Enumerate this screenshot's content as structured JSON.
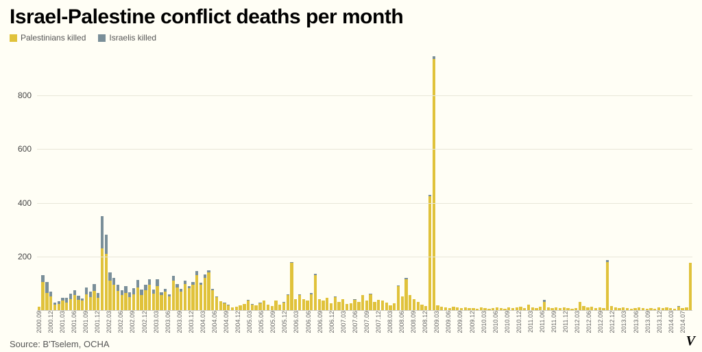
{
  "title": "Israel-Palestine conflict deaths per month",
  "title_fontsize": 30,
  "legend": {
    "series1": {
      "label": "Palestinians killed",
      "color": "#e0c23b"
    },
    "series2": {
      "label": "Israelis killed",
      "color": "#7a8f99"
    }
  },
  "source": "Source: B'Tselem, OCHA",
  "logo": "V",
  "chart": {
    "type": "stacked-bar",
    "background_color": "#fffef5",
    "grid_color": "#e8e6d8",
    "axis_color": "#cccccc",
    "ylim": [
      0,
      950
    ],
    "yticks": [
      200,
      400,
      600,
      800
    ],
    "ytick_fontsize": 12,
    "xlabel_fontsize": 9,
    "xlabel_rotation": -90,
    "bar_gap_ratio": 0.25,
    "xlabels": [
      "2000.09",
      "2000.12",
      "2001.03",
      "2001.06",
      "2001.09",
      "2001.12",
      "2002.03",
      "2002.06",
      "2002.09",
      "2002.12",
      "2003.03",
      "2003.06",
      "2003.09",
      "2003.12",
      "2004.03",
      "2004.06",
      "2004.09",
      "2004.12",
      "2005.03",
      "2005.06",
      "2005.09",
      "2005.12",
      "2006.03",
      "2006.06",
      "2006.09",
      "2006.12",
      "2007.03",
      "2007.06",
      "2007.09",
      "2007.12",
      "2008.03",
      "2008.06",
      "2008.09",
      "2008.12",
      "2009.03",
      "2009.06",
      "2009.09",
      "2009.12",
      "2010.03",
      "2010.06",
      "2010.09",
      "2010.12",
      "2011.03",
      "2011.06",
      "2011.09",
      "2011.12",
      "2012.03",
      "2012.06",
      "2012.09",
      "2012.12",
      "2013.03",
      "2013.06",
      "2013.09",
      "2013.12",
      "2014.03",
      "2014.07"
    ],
    "data": [
      {
        "p": 12,
        "i": 2
      },
      {
        "p": 105,
        "i": 25
      },
      {
        "p": 65,
        "i": 40
      },
      {
        "p": 50,
        "i": 18
      },
      {
        "p": 20,
        "i": 8
      },
      {
        "p": 22,
        "i": 12
      },
      {
        "p": 35,
        "i": 10
      },
      {
        "p": 28,
        "i": 18
      },
      {
        "p": 40,
        "i": 22
      },
      {
        "p": 55,
        "i": 18
      },
      {
        "p": 38,
        "i": 15
      },
      {
        "p": 35,
        "i": 8
      },
      {
        "p": 60,
        "i": 25
      },
      {
        "p": 48,
        "i": 20
      },
      {
        "p": 72,
        "i": 25
      },
      {
        "p": 45,
        "i": 20
      },
      {
        "p": 230,
        "i": 120
      },
      {
        "p": 210,
        "i": 70
      },
      {
        "p": 110,
        "i": 30
      },
      {
        "p": 95,
        "i": 25
      },
      {
        "p": 72,
        "i": 22
      },
      {
        "p": 55,
        "i": 18
      },
      {
        "p": 65,
        "i": 25
      },
      {
        "p": 48,
        "i": 18
      },
      {
        "p": 60,
        "i": 22
      },
      {
        "p": 85,
        "i": 28
      },
      {
        "p": 55,
        "i": 22
      },
      {
        "p": 75,
        "i": 20
      },
      {
        "p": 95,
        "i": 20
      },
      {
        "p": 62,
        "i": 15
      },
      {
        "p": 90,
        "i": 25
      },
      {
        "p": 55,
        "i": 12
      },
      {
        "p": 70,
        "i": 10
      },
      {
        "p": 50,
        "i": 8
      },
      {
        "p": 110,
        "i": 18
      },
      {
        "p": 85,
        "i": 12
      },
      {
        "p": 68,
        "i": 10
      },
      {
        "p": 98,
        "i": 12
      },
      {
        "p": 82,
        "i": 8
      },
      {
        "p": 95,
        "i": 10
      },
      {
        "p": 130,
        "i": 15
      },
      {
        "p": 95,
        "i": 8
      },
      {
        "p": 120,
        "i": 12
      },
      {
        "p": 140,
        "i": 8
      },
      {
        "p": 75,
        "i": 5
      },
      {
        "p": 48,
        "i": 3
      },
      {
        "p": 32,
        "i": 2
      },
      {
        "p": 25,
        "i": 2
      },
      {
        "p": 18,
        "i": 2
      },
      {
        "p": 10,
        "i": 1
      },
      {
        "p": 12,
        "i": 0
      },
      {
        "p": 18,
        "i": 0
      },
      {
        "p": 22,
        "i": 2
      },
      {
        "p": 35,
        "i": 3
      },
      {
        "p": 20,
        "i": 2
      },
      {
        "p": 18,
        "i": 1
      },
      {
        "p": 25,
        "i": 2
      },
      {
        "p": 35,
        "i": 2
      },
      {
        "p": 20,
        "i": 1
      },
      {
        "p": 15,
        "i": 1
      },
      {
        "p": 35,
        "i": 2
      },
      {
        "p": 20,
        "i": 1
      },
      {
        "p": 28,
        "i": 2
      },
      {
        "p": 55,
        "i": 3
      },
      {
        "p": 175,
        "i": 5
      },
      {
        "p": 40,
        "i": 2
      },
      {
        "p": 55,
        "i": 3
      },
      {
        "p": 40,
        "i": 2
      },
      {
        "p": 35,
        "i": 2
      },
      {
        "p": 60,
        "i": 3
      },
      {
        "p": 130,
        "i": 5
      },
      {
        "p": 40,
        "i": 2
      },
      {
        "p": 35,
        "i": 2
      },
      {
        "p": 45,
        "i": 2
      },
      {
        "p": 25,
        "i": 1
      },
      {
        "p": 48,
        "i": 2
      },
      {
        "p": 30,
        "i": 1
      },
      {
        "p": 40,
        "i": 2
      },
      {
        "p": 22,
        "i": 1
      },
      {
        "p": 25,
        "i": 1
      },
      {
        "p": 38,
        "i": 2
      },
      {
        "p": 30,
        "i": 1
      },
      {
        "p": 55,
        "i": 2
      },
      {
        "p": 35,
        "i": 1
      },
      {
        "p": 60,
        "i": 2
      },
      {
        "p": 30,
        "i": 1
      },
      {
        "p": 38,
        "i": 1
      },
      {
        "p": 35,
        "i": 1
      },
      {
        "p": 28,
        "i": 1
      },
      {
        "p": 18,
        "i": 1
      },
      {
        "p": 25,
        "i": 1
      },
      {
        "p": 90,
        "i": 3
      },
      {
        "p": 50,
        "i": 2
      },
      {
        "p": 115,
        "i": 4
      },
      {
        "p": 55,
        "i": 2
      },
      {
        "p": 40,
        "i": 1
      },
      {
        "p": 30,
        "i": 1
      },
      {
        "p": 20,
        "i": 1
      },
      {
        "p": 15,
        "i": 0
      },
      {
        "p": 425,
        "i": 5
      },
      {
        "p": 935,
        "i": 10
      },
      {
        "p": 18,
        "i": 1
      },
      {
        "p": 12,
        "i": 0
      },
      {
        "p": 10,
        "i": 0
      },
      {
        "p": 8,
        "i": 0
      },
      {
        "p": 12,
        "i": 0
      },
      {
        "p": 10,
        "i": 0
      },
      {
        "p": 8,
        "i": 0
      },
      {
        "p": 10,
        "i": 0
      },
      {
        "p": 8,
        "i": 0
      },
      {
        "p": 8,
        "i": 0
      },
      {
        "p": 6,
        "i": 0
      },
      {
        "p": 10,
        "i": 0
      },
      {
        "p": 8,
        "i": 0
      },
      {
        "p": 6,
        "i": 0
      },
      {
        "p": 8,
        "i": 0
      },
      {
        "p": 10,
        "i": 0
      },
      {
        "p": 8,
        "i": 0
      },
      {
        "p": 6,
        "i": 0
      },
      {
        "p": 10,
        "i": 0
      },
      {
        "p": 8,
        "i": 0
      },
      {
        "p": 10,
        "i": 0
      },
      {
        "p": 12,
        "i": 0
      },
      {
        "p": 8,
        "i": 0
      },
      {
        "p": 20,
        "i": 1
      },
      {
        "p": 10,
        "i": 0
      },
      {
        "p": 8,
        "i": 0
      },
      {
        "p": 12,
        "i": 0
      },
      {
        "p": 30,
        "i": 8
      },
      {
        "p": 10,
        "i": 0
      },
      {
        "p": 8,
        "i": 0
      },
      {
        "p": 10,
        "i": 0
      },
      {
        "p": 8,
        "i": 0
      },
      {
        "p": 10,
        "i": 0
      },
      {
        "p": 8,
        "i": 0
      },
      {
        "p": 6,
        "i": 0
      },
      {
        "p": 8,
        "i": 0
      },
      {
        "p": 30,
        "i": 1
      },
      {
        "p": 15,
        "i": 0
      },
      {
        "p": 10,
        "i": 0
      },
      {
        "p": 12,
        "i": 0
      },
      {
        "p": 8,
        "i": 0
      },
      {
        "p": 10,
        "i": 0
      },
      {
        "p": 8,
        "i": 0
      },
      {
        "p": 180,
        "i": 6
      },
      {
        "p": 15,
        "i": 0
      },
      {
        "p": 10,
        "i": 0
      },
      {
        "p": 8,
        "i": 0
      },
      {
        "p": 10,
        "i": 0
      },
      {
        "p": 8,
        "i": 0
      },
      {
        "p": 6,
        "i": 0
      },
      {
        "p": 8,
        "i": 0
      },
      {
        "p": 10,
        "i": 0
      },
      {
        "p": 8,
        "i": 0
      },
      {
        "p": 6,
        "i": 0
      },
      {
        "p": 8,
        "i": 0
      },
      {
        "p": 6,
        "i": 0
      },
      {
        "p": 10,
        "i": 0
      },
      {
        "p": 8,
        "i": 0
      },
      {
        "p": 10,
        "i": 0
      },
      {
        "p": 8,
        "i": 0
      },
      {
        "p": 6,
        "i": 0
      },
      {
        "p": 12,
        "i": 3
      },
      {
        "p": 8,
        "i": 0
      },
      {
        "p": 10,
        "i": 0
      },
      {
        "p": 175,
        "i": 2
      }
    ]
  }
}
